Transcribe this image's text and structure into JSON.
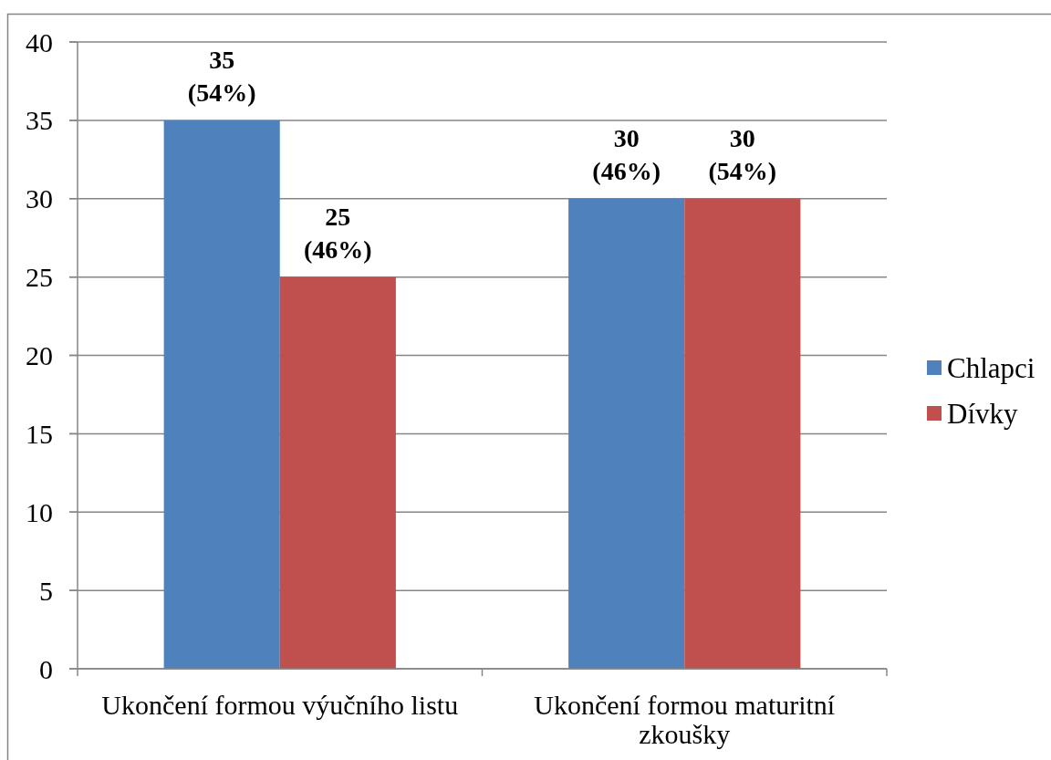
{
  "chart_data": {
    "type": "bar",
    "categories": [
      "Ukončení formou výučního listu",
      "Ukončení formou maturitní zkoušky"
    ],
    "series": [
      {
        "name": "Chlapci",
        "color": "#4f81bd",
        "values": [
          35,
          30
        ],
        "value_labels": [
          "35\n(54%)",
          "30\n(46%)"
        ]
      },
      {
        "name": "Dívky",
        "color": "#c0504d",
        "values": [
          25,
          30
        ],
        "value_labels": [
          "25\n(46%)",
          "30\n(54%)"
        ]
      }
    ],
    "ylim": [
      0,
      40
    ],
    "yticks": [
      0,
      5,
      10,
      15,
      20,
      25,
      30,
      35,
      40
    ],
    "grid": "y",
    "legend": "right"
  }
}
